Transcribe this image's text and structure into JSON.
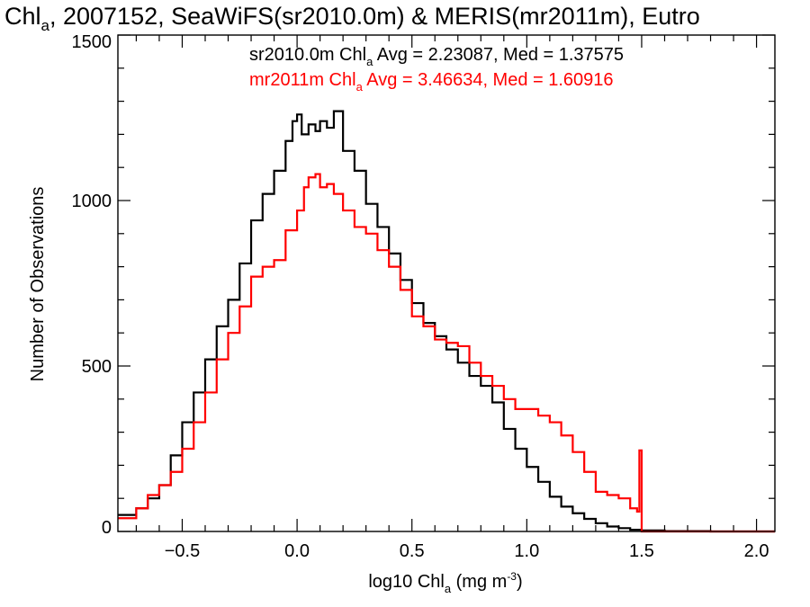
{
  "chart_data": {
    "type": "line",
    "title": {
      "main": "Chl",
      "sub": "a",
      "rest": ", 2007152, SeaWiFS(sr2010.0m) & MERIS(mr2011m), Eutro"
    },
    "xlabel": {
      "main": "log10 Chl",
      "sub": "a",
      "rest": " (mg m",
      "sup": "-3",
      "end": ")"
    },
    "ylabel": "Number of Observations",
    "xlim": [
      -0.78,
      2.08
    ],
    "ylim": [
      0,
      1500
    ],
    "xticks": [
      -0.5,
      0.0,
      0.5,
      1.0,
      1.5,
      2.0
    ],
    "xtick_labels": [
      "−0.5",
      "0.0",
      "0.5",
      "1.0",
      "1.5",
      "2.0"
    ],
    "yticks": [
      0,
      500,
      1000,
      1500
    ],
    "ytick_labels": [
      "0",
      "500",
      "1000",
      "1500"
    ],
    "grid": false,
    "legend_position": "top",
    "series": [
      {
        "legend": {
          "main": "sr2010.0m Chl",
          "sub": "a",
          "rest": " Avg = 2.23087, Med = 1.37575"
        },
        "color": "#000000",
        "points": [
          [
            -0.78,
            50
          ],
          [
            -0.7,
            70
          ],
          [
            -0.65,
            100
          ],
          [
            -0.6,
            140
          ],
          [
            -0.55,
            230
          ],
          [
            -0.5,
            330
          ],
          [
            -0.45,
            420
          ],
          [
            -0.4,
            520
          ],
          [
            -0.35,
            620
          ],
          [
            -0.3,
            700
          ],
          [
            -0.25,
            810
          ],
          [
            -0.2,
            940
          ],
          [
            -0.15,
            1020
          ],
          [
            -0.1,
            1090
          ],
          [
            -0.05,
            1180
          ],
          [
            -0.02,
            1240
          ],
          [
            0.0,
            1260
          ],
          [
            0.02,
            1200
          ],
          [
            0.05,
            1230
          ],
          [
            0.08,
            1210
          ],
          [
            0.1,
            1240
          ],
          [
            0.13,
            1220
          ],
          [
            0.16,
            1270
          ],
          [
            0.2,
            1150
          ],
          [
            0.25,
            1090
          ],
          [
            0.3,
            990
          ],
          [
            0.35,
            920
          ],
          [
            0.4,
            840
          ],
          [
            0.45,
            760
          ],
          [
            0.5,
            690
          ],
          [
            0.55,
            630
          ],
          [
            0.6,
            590
          ],
          [
            0.65,
            550
          ],
          [
            0.7,
            510
          ],
          [
            0.75,
            470
          ],
          [
            0.8,
            440
          ],
          [
            0.85,
            390
          ],
          [
            0.9,
            310
          ],
          [
            0.95,
            250
          ],
          [
            1.0,
            195
          ],
          [
            1.05,
            150
          ],
          [
            1.1,
            105
          ],
          [
            1.15,
            75
          ],
          [
            1.2,
            55
          ],
          [
            1.25,
            38
          ],
          [
            1.3,
            25
          ],
          [
            1.35,
            15
          ],
          [
            1.4,
            10
          ],
          [
            1.45,
            5
          ],
          [
            1.5,
            3
          ],
          [
            1.6,
            1
          ],
          [
            1.8,
            0
          ],
          [
            2.08,
            0
          ]
        ]
      },
      {
        "legend": {
          "main": "mr2011m Chl",
          "sub": "a",
          "rest": " Avg = 3.46634, Med = 1.60916"
        },
        "color": "#ff0000",
        "points": [
          [
            -0.78,
            40
          ],
          [
            -0.7,
            70
          ],
          [
            -0.65,
            110
          ],
          [
            -0.6,
            140
          ],
          [
            -0.55,
            180
          ],
          [
            -0.5,
            250
          ],
          [
            -0.45,
            330
          ],
          [
            -0.4,
            420
          ],
          [
            -0.35,
            520
          ],
          [
            -0.3,
            600
          ],
          [
            -0.25,
            680
          ],
          [
            -0.2,
            770
          ],
          [
            -0.15,
            800
          ],
          [
            -0.1,
            820
          ],
          [
            -0.05,
            910
          ],
          [
            0.0,
            970
          ],
          [
            0.03,
            1040
          ],
          [
            0.05,
            1070
          ],
          [
            0.08,
            1080
          ],
          [
            0.1,
            1040
          ],
          [
            0.13,
            1050
          ],
          [
            0.16,
            1020
          ],
          [
            0.2,
            970
          ],
          [
            0.25,
            920
          ],
          [
            0.3,
            900
          ],
          [
            0.35,
            850
          ],
          [
            0.4,
            800
          ],
          [
            0.45,
            730
          ],
          [
            0.5,
            650
          ],
          [
            0.55,
            620
          ],
          [
            0.6,
            580
          ],
          [
            0.65,
            570
          ],
          [
            0.7,
            560
          ],
          [
            0.75,
            510
          ],
          [
            0.8,
            470
          ],
          [
            0.85,
            440
          ],
          [
            0.9,
            400
          ],
          [
            0.95,
            370
          ],
          [
            1.0,
            370
          ],
          [
            1.05,
            350
          ],
          [
            1.1,
            330
          ],
          [
            1.15,
            290
          ],
          [
            1.2,
            240
          ],
          [
            1.25,
            180
          ],
          [
            1.3,
            120
          ],
          [
            1.35,
            110
          ],
          [
            1.4,
            100
          ],
          [
            1.45,
            70
          ],
          [
            1.48,
            60
          ],
          [
            1.49,
            245
          ],
          [
            1.5,
            0
          ],
          [
            1.8,
            0
          ],
          [
            2.08,
            0
          ]
        ]
      }
    ]
  }
}
